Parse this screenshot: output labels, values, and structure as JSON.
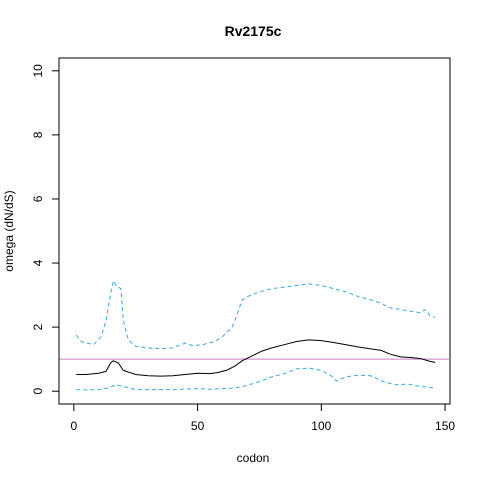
{
  "chart_data": {
    "type": "line",
    "title": "Rv2175c",
    "xlabel": "codon",
    "ylabel": "omega (dN/dS)",
    "xlim": [
      -6,
      152
    ],
    "ylim": [
      -0.4,
      10.4
    ],
    "xticks": [
      0,
      50,
      100,
      150
    ],
    "yticks": [
      0,
      2,
      4,
      6,
      8,
      10
    ],
    "grid": false,
    "legend": "none",
    "reference_line": {
      "y": 1.0,
      "color": "#c77fc7"
    },
    "series": [
      {
        "color": "#000000",
        "style": "solid",
        "x": [
          1,
          5,
          10,
          13,
          15,
          16,
          18,
          20,
          25,
          30,
          35,
          40,
          45,
          50,
          55,
          58,
          62,
          65,
          68,
          72,
          76,
          80,
          85,
          90,
          95,
          100,
          105,
          110,
          115,
          120,
          124,
          128,
          132,
          136,
          140,
          144,
          146
        ],
        "y": [
          0.52,
          0.52,
          0.56,
          0.62,
          0.9,
          0.95,
          0.88,
          0.65,
          0.52,
          0.48,
          0.47,
          0.48,
          0.52,
          0.56,
          0.55,
          0.58,
          0.66,
          0.78,
          0.95,
          1.1,
          1.25,
          1.35,
          1.45,
          1.55,
          1.6,
          1.58,
          1.52,
          1.45,
          1.38,
          1.32,
          1.28,
          1.15,
          1.07,
          1.05,
          1.02,
          0.93,
          0.9
        ]
      },
      {
        "color": "#3aa8dc",
        "style": "dashed",
        "x": [
          1,
          3,
          8,
          11,
          13,
          15,
          16,
          17,
          19,
          20,
          22,
          25,
          30,
          35,
          40,
          45,
          48,
          52,
          57,
          60,
          64,
          66,
          68,
          70,
          75,
          80,
          85,
          90,
          95,
          100,
          105,
          110,
          115,
          120,
          124,
          128,
          132,
          136,
          140,
          142,
          144,
          146
        ],
        "y": [
          1.75,
          1.55,
          1.45,
          1.7,
          2.2,
          3.1,
          3.45,
          3.3,
          3.2,
          2.2,
          1.6,
          1.4,
          1.35,
          1.32,
          1.35,
          1.5,
          1.42,
          1.45,
          1.55,
          1.7,
          2.0,
          2.4,
          2.85,
          2.95,
          3.1,
          3.2,
          3.25,
          3.3,
          3.35,
          3.3,
          3.2,
          3.1,
          2.95,
          2.85,
          2.75,
          2.6,
          2.55,
          2.5,
          2.45,
          2.55,
          2.35,
          2.3
        ]
      },
      {
        "color": "#3aa8dc",
        "style": "dashed",
        "x": [
          1,
          5,
          10,
          14,
          17,
          20,
          25,
          30,
          40,
          50,
          55,
          60,
          65,
          70,
          75,
          80,
          85,
          90,
          95,
          100,
          104,
          106,
          110,
          115,
          120,
          125,
          130,
          135,
          140,
          146
        ],
        "y": [
          0.05,
          0.04,
          0.05,
          0.1,
          0.2,
          0.15,
          0.05,
          0.05,
          0.05,
          0.08,
          0.06,
          0.08,
          0.1,
          0.18,
          0.3,
          0.45,
          0.55,
          0.7,
          0.72,
          0.65,
          0.48,
          0.32,
          0.45,
          0.5,
          0.48,
          0.3,
          0.2,
          0.22,
          0.15,
          0.1
        ]
      }
    ]
  }
}
